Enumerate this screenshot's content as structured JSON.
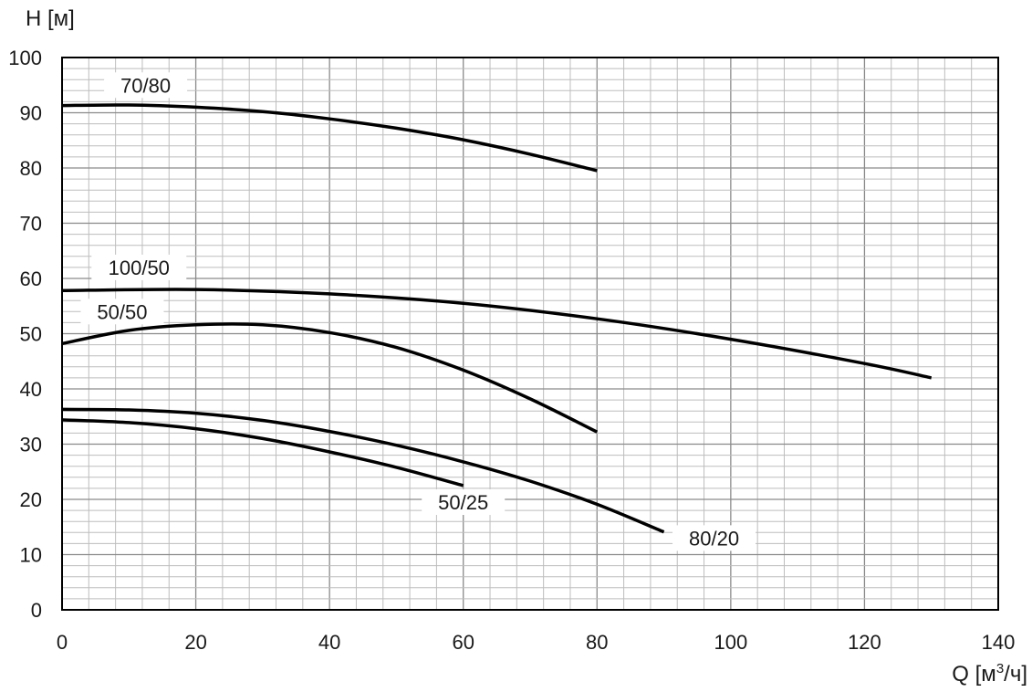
{
  "chart_data": {
    "type": "line",
    "xlabel": "Q [м³/ч]",
    "xlabel_main": "Q [м",
    "xlabel_sup": "3",
    "xlabel_tail": "/ч]",
    "ylabel": "H [м]",
    "xlim": [
      0,
      140
    ],
    "ylim": [
      0,
      100
    ],
    "x_ticks": [
      0,
      20,
      40,
      60,
      80,
      100,
      120,
      140
    ],
    "y_ticks": [
      0,
      10,
      20,
      30,
      40,
      50,
      60,
      70,
      80,
      90,
      100
    ],
    "x_minor_step": 4,
    "y_minor_step": 2,
    "grid": true,
    "series": [
      {
        "name": "70/80",
        "x": [
          0,
          10,
          20,
          30,
          40,
          50,
          60,
          70,
          80
        ],
        "y": [
          91.3,
          91.4,
          91.0,
          90.2,
          88.9,
          87.2,
          85.1,
          82.5,
          79.5
        ]
      },
      {
        "name": "100/50",
        "x": [
          0,
          20,
          40,
          60,
          80,
          100,
          120,
          130
        ],
        "y": [
          57.8,
          58.0,
          57.2,
          55.5,
          52.7,
          49.0,
          44.6,
          42.0
        ]
      },
      {
        "name": "50/50",
        "x": [
          0,
          10,
          20,
          30,
          40,
          50,
          60,
          70,
          80
        ],
        "y": [
          48.2,
          50.6,
          51.6,
          51.6,
          50.2,
          47.5,
          43.4,
          38.2,
          32.2
        ]
      },
      {
        "name": "80/20",
        "x": [
          0,
          10,
          20,
          30,
          40,
          50,
          60,
          70,
          80,
          90
        ],
        "y": [
          36.3,
          36.2,
          35.6,
          34.3,
          32.3,
          29.8,
          26.8,
          23.3,
          19.1,
          14.1
        ]
      },
      {
        "name": "50/25",
        "x": [
          0,
          10,
          20,
          30,
          40,
          50,
          60
        ],
        "y": [
          34.4,
          33.9,
          32.8,
          31.0,
          28.6,
          25.8,
          22.5
        ]
      }
    ],
    "labels": [
      {
        "text": "70/80",
        "x": 12.5,
        "y": 94.5
      },
      {
        "text": "100/50",
        "x": 11.5,
        "y": 61.5
      },
      {
        "text": "50/50",
        "x": 9,
        "y": 53.5
      },
      {
        "text": "50/25",
        "x": 60,
        "y": 19.0
      },
      {
        "text": "80/20",
        "x": 97.5,
        "y": 12.5
      }
    ]
  }
}
